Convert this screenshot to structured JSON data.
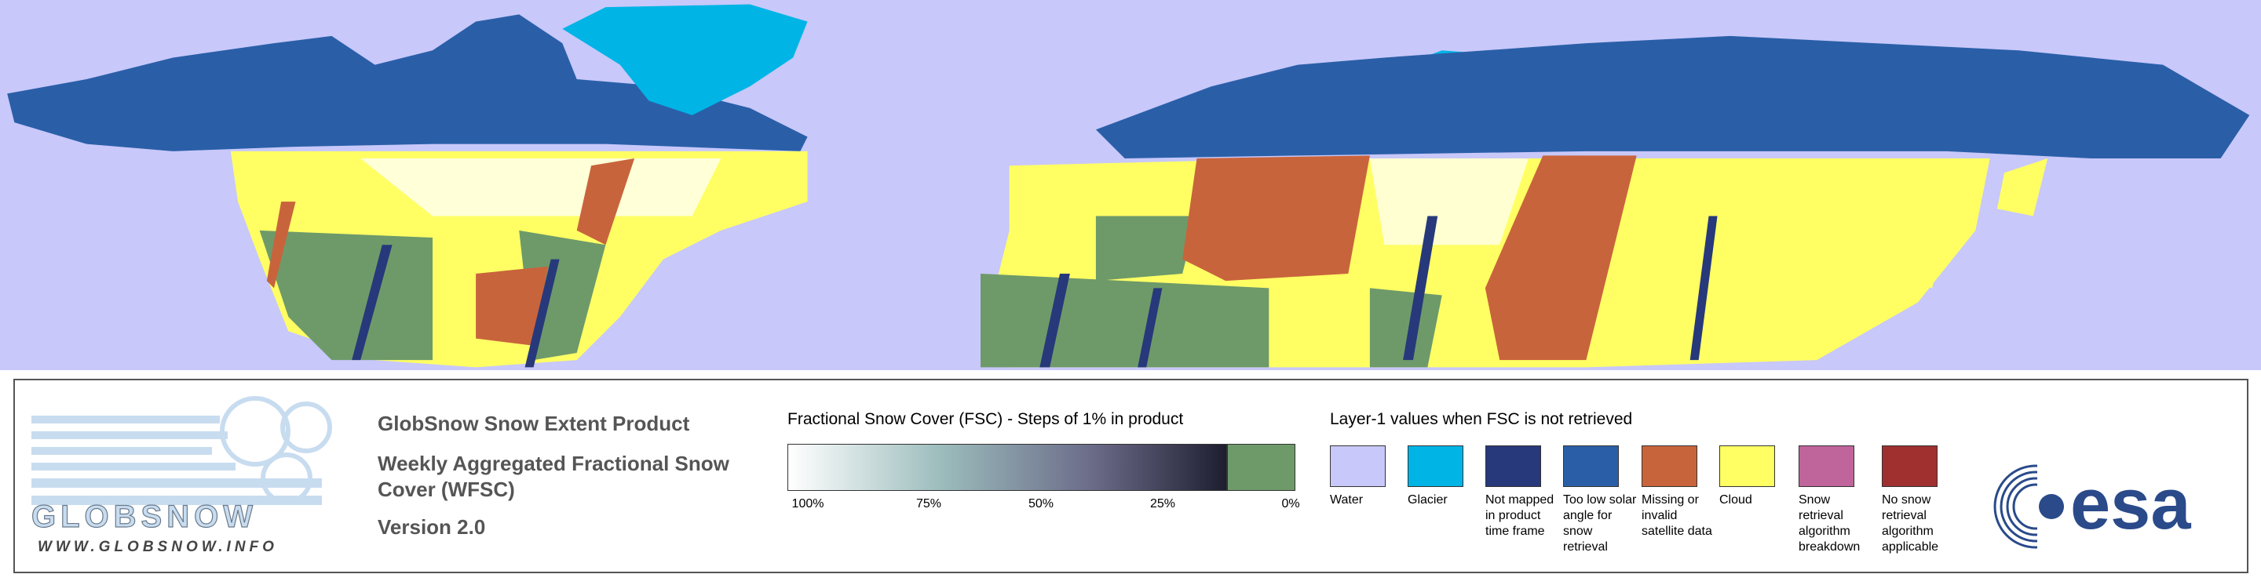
{
  "logo": {
    "name": "GLOBSNOW",
    "url": "WWW.GLOBSNOW.INFO"
  },
  "header": {
    "title": "GlobSnow Snow Extent Product",
    "subtitle": "Weekly Aggregated Fractional Snow Cover (WFSC)",
    "version": "Version 2.0"
  },
  "colorbar": {
    "title": "Fractional Snow Cover (FSC) - Steps of 1% in product",
    "ticks": [
      "100%",
      "75%",
      "50%",
      "25%",
      "0%"
    ]
  },
  "layer1_legend": {
    "title": "Layer-1 values when FSC is not retrieved",
    "items": [
      {
        "label": "Water",
        "color": "#c8c8fa"
      },
      {
        "label": "Glacier",
        "color": "#00b4e6"
      },
      {
        "label": "Not mapped in product time frame",
        "color": "#27397a"
      },
      {
        "label": "Too low solar angle for snow retrieval",
        "color": "#2a5fa8"
      },
      {
        "label": "Missing or invalid satellite data",
        "color": "#c8643c"
      },
      {
        "label": "Cloud",
        "color": "#ffff64"
      },
      {
        "label": "Snow retrieval algorithm breakdown",
        "color": "#c0649c"
      },
      {
        "label": "No snow retrieval algorithm applicable",
        "color": "#a03030"
      }
    ]
  },
  "agency_logo": "esa"
}
